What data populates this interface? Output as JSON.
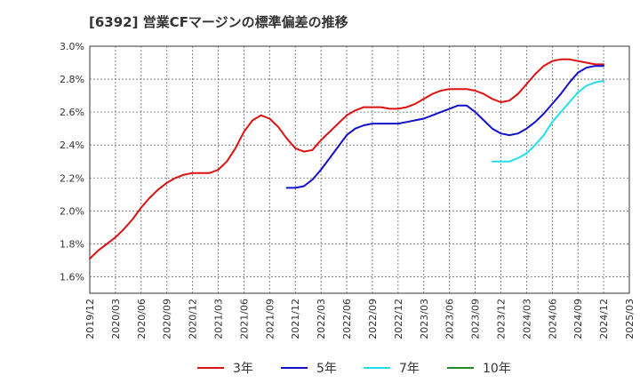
{
  "chart_data": {
    "type": "line",
    "title": "[6392]  営業CFマージンの標準偏差の推移",
    "xlabel": "",
    "ylabel": "",
    "ylim": [
      1.5,
      3.0
    ],
    "grid": true,
    "legend_position": "bottom",
    "x_ticks": [
      "2019/12",
      "2020/03",
      "2020/06",
      "2020/09",
      "2020/12",
      "2021/03",
      "2021/06",
      "2021/09",
      "2021/12",
      "2022/03",
      "2022/06",
      "2022/09",
      "2022/12",
      "2023/03",
      "2023/06",
      "2023/09",
      "2023/12",
      "2024/03",
      "2024/06",
      "2024/09",
      "2024/12",
      "2025/03"
    ],
    "y_ticks": [
      "3.0%",
      "2.8%",
      "2.6%",
      "2.4%",
      "2.2%",
      "2.0%",
      "1.8%",
      "1.6%"
    ],
    "series": [
      {
        "name": "3年",
        "color": "#dd1111",
        "x": [
          "2019/12",
          "2020/01",
          "2020/02",
          "2020/03",
          "2020/04",
          "2020/05",
          "2020/06",
          "2020/07",
          "2020/08",
          "2020/09",
          "2020/10",
          "2020/11",
          "2020/12",
          "2021/01",
          "2021/02",
          "2021/03",
          "2021/04",
          "2021/05",
          "2021/06",
          "2021/07",
          "2021/08",
          "2021/09",
          "2021/10",
          "2021/11",
          "2021/12",
          "2022/01",
          "2022/02",
          "2022/03",
          "2022/04",
          "2022/05",
          "2022/06",
          "2022/07",
          "2022/08",
          "2022/09",
          "2022/10",
          "2022/11",
          "2022/12",
          "2023/01",
          "2023/02",
          "2023/03",
          "2023/04",
          "2023/05",
          "2023/06",
          "2023/07",
          "2023/08",
          "2023/09",
          "2023/10",
          "2023/11",
          "2023/12",
          "2024/01",
          "2024/02",
          "2024/03",
          "2024/04",
          "2024/05",
          "2024/06",
          "2024/07",
          "2024/08",
          "2024/09",
          "2024/10",
          "2024/11",
          "2024/12"
        ],
        "values": [
          1.71,
          1.76,
          1.8,
          1.84,
          1.89,
          1.95,
          2.02,
          2.08,
          2.13,
          2.17,
          2.2,
          2.22,
          2.23,
          2.23,
          2.23,
          2.25,
          2.3,
          2.38,
          2.48,
          2.55,
          2.58,
          2.56,
          2.51,
          2.44,
          2.38,
          2.36,
          2.37,
          2.43,
          2.48,
          2.53,
          2.58,
          2.61,
          2.63,
          2.63,
          2.63,
          2.62,
          2.62,
          2.63,
          2.65,
          2.68,
          2.71,
          2.73,
          2.74,
          2.74,
          2.74,
          2.73,
          2.71,
          2.68,
          2.66,
          2.67,
          2.71,
          2.77,
          2.83,
          2.88,
          2.91,
          2.92,
          2.92,
          2.91,
          2.9,
          2.89,
          2.89
        ]
      },
      {
        "name": "5年",
        "color": "#1111cc",
        "x": [
          "2021/11",
          "2021/12",
          "2022/01",
          "2022/02",
          "2022/03",
          "2022/04",
          "2022/05",
          "2022/06",
          "2022/07",
          "2022/08",
          "2022/09",
          "2022/10",
          "2022/11",
          "2022/12",
          "2023/01",
          "2023/02",
          "2023/03",
          "2023/04",
          "2023/05",
          "2023/06",
          "2023/07",
          "2023/08",
          "2023/09",
          "2023/10",
          "2023/11",
          "2023/12",
          "2024/01",
          "2024/02",
          "2024/03",
          "2024/04",
          "2024/05",
          "2024/06",
          "2024/07",
          "2024/08",
          "2024/09",
          "2024/10",
          "2024/11",
          "2024/12"
        ],
        "values": [
          2.14,
          2.14,
          2.15,
          2.19,
          2.25,
          2.32,
          2.39,
          2.46,
          2.5,
          2.52,
          2.53,
          2.53,
          2.53,
          2.53,
          2.54,
          2.55,
          2.56,
          2.58,
          2.6,
          2.62,
          2.64,
          2.64,
          2.6,
          2.55,
          2.5,
          2.47,
          2.46,
          2.47,
          2.5,
          2.54,
          2.59,
          2.65,
          2.71,
          2.78,
          2.84,
          2.87,
          2.88,
          2.88
        ]
      },
      {
        "name": "7年",
        "color": "#22ddee",
        "x": [
          "2023/11",
          "2023/12",
          "2024/01",
          "2024/02",
          "2024/03",
          "2024/04",
          "2024/05",
          "2024/06",
          "2024/07",
          "2024/08",
          "2024/09",
          "2024/10",
          "2024/11",
          "2024/12"
        ],
        "values": [
          2.3,
          2.3,
          2.3,
          2.32,
          2.35,
          2.4,
          2.46,
          2.54,
          2.6,
          2.66,
          2.72,
          2.76,
          2.78,
          2.79
        ]
      },
      {
        "name": "10年",
        "color": "#228822",
        "x": [],
        "values": []
      }
    ]
  }
}
